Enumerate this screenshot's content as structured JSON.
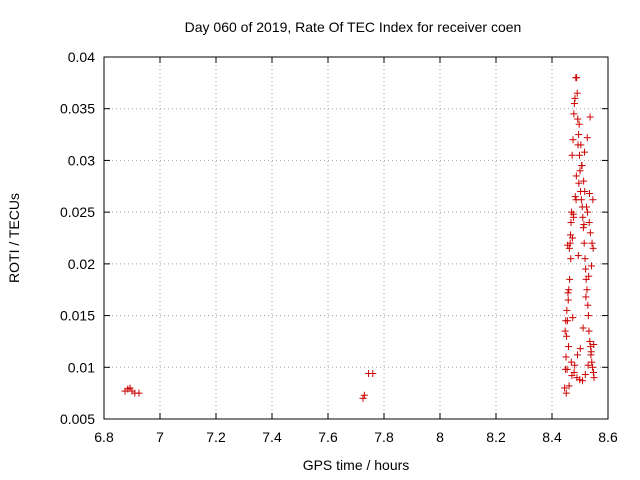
{
  "chart_data": {
    "type": "scatter",
    "title": "Day 060 of 2019, Rate Of TEC Index for receiver coen",
    "xlabel": "GPS time / hours",
    "ylabel": "ROTI / TECUs",
    "xlim": [
      6.8,
      8.6
    ],
    "ylim": [
      0.005,
      0.04
    ],
    "x_ticks": [
      "6.8",
      "7",
      "7.2",
      "7.4",
      "7.6",
      "7.8",
      "8",
      "8.2",
      "8.4",
      "8.6"
    ],
    "y_ticks": [
      "0.005",
      "0.01",
      "0.015",
      "0.02",
      "0.025",
      "0.03",
      "0.035",
      "0.04"
    ],
    "grid": true,
    "marker": "+",
    "series": [
      {
        "name": "ROTI",
        "color": "#cc0000",
        "x": [
          6.875,
          6.885,
          6.893,
          6.9,
          6.91,
          6.925,
          7.725,
          7.73,
          7.745,
          7.76,
          8.445,
          8.448,
          8.45,
          8.452,
          8.455,
          8.458,
          8.46,
          8.462,
          8.465,
          8.468,
          8.47,
          8.472,
          8.475,
          8.478,
          8.48,
          8.482,
          8.485,
          8.488,
          8.49,
          8.492,
          8.495,
          8.498,
          8.5,
          8.502,
          8.505,
          8.508,
          8.51,
          8.512,
          8.515,
          8.518,
          8.52,
          8.522,
          8.525,
          8.528,
          8.53,
          8.532,
          8.535,
          8.538,
          8.54,
          8.542,
          8.545,
          8.548,
          8.55,
          8.447,
          8.453,
          8.457,
          8.463,
          8.467,
          8.473,
          8.477,
          8.483,
          8.487,
          8.493,
          8.497,
          8.503,
          8.507,
          8.513,
          8.517,
          8.523,
          8.527,
          8.533,
          8.537,
          8.543,
          8.547,
          8.449,
          8.459,
          8.469,
          8.479,
          8.489,
          8.499,
          8.509,
          8.519,
          8.529,
          8.539,
          8.549,
          8.451,
          8.461,
          8.471,
          8.481,
          8.491,
          8.501,
          8.511,
          8.521,
          8.531,
          8.541,
          8.456,
          8.466,
          8.476,
          8.486,
          8.496,
          8.506,
          8.516,
          8.526,
          8.536,
          8.546,
          8.454,
          8.474,
          8.494,
          8.514,
          8.534
        ],
        "y": [
          0.0077,
          0.0079,
          0.008,
          0.0077,
          0.0075,
          0.0075,
          0.007,
          0.0073,
          0.0094,
          0.0094,
          0.008,
          0.0098,
          0.011,
          0.013,
          0.0145,
          0.0165,
          0.0175,
          0.0215,
          0.022,
          0.024,
          0.025,
          0.0305,
          0.032,
          0.0345,
          0.0355,
          0.036,
          0.038,
          0.038,
          0.0365,
          0.034,
          0.0325,
          0.0305,
          0.029,
          0.027,
          0.0262,
          0.0255,
          0.0245,
          0.0235,
          0.022,
          0.0205,
          0.0195,
          0.0185,
          0.0175,
          0.016,
          0.015,
          0.0135,
          0.0125,
          0.012,
          0.0115,
          0.0105,
          0.01,
          0.0095,
          0.009,
          0.0135,
          0.0155,
          0.0172,
          0.0185,
          0.0205,
          0.0225,
          0.0245,
          0.0265,
          0.0285,
          0.0315,
          0.0335,
          0.0315,
          0.0295,
          0.028,
          0.027,
          0.0255,
          0.025,
          0.024,
          0.023,
          0.022,
          0.0215,
          0.0145,
          0.012,
          0.0105,
          0.0095,
          0.009,
          0.0088,
          0.0087,
          0.0093,
          0.0102,
          0.0112,
          0.0122,
          0.0075,
          0.0082,
          0.0092,
          0.0102,
          0.0112,
          0.0118,
          0.0138,
          0.0168,
          0.0188,
          0.0198,
          0.0218,
          0.0228,
          0.0248,
          0.0262,
          0.0278,
          0.0295,
          0.0308,
          0.0322,
          0.0342,
          0.0262,
          0.0098,
          0.0148,
          0.0208,
          0.0238,
          0.0268
        ]
      }
    ]
  }
}
